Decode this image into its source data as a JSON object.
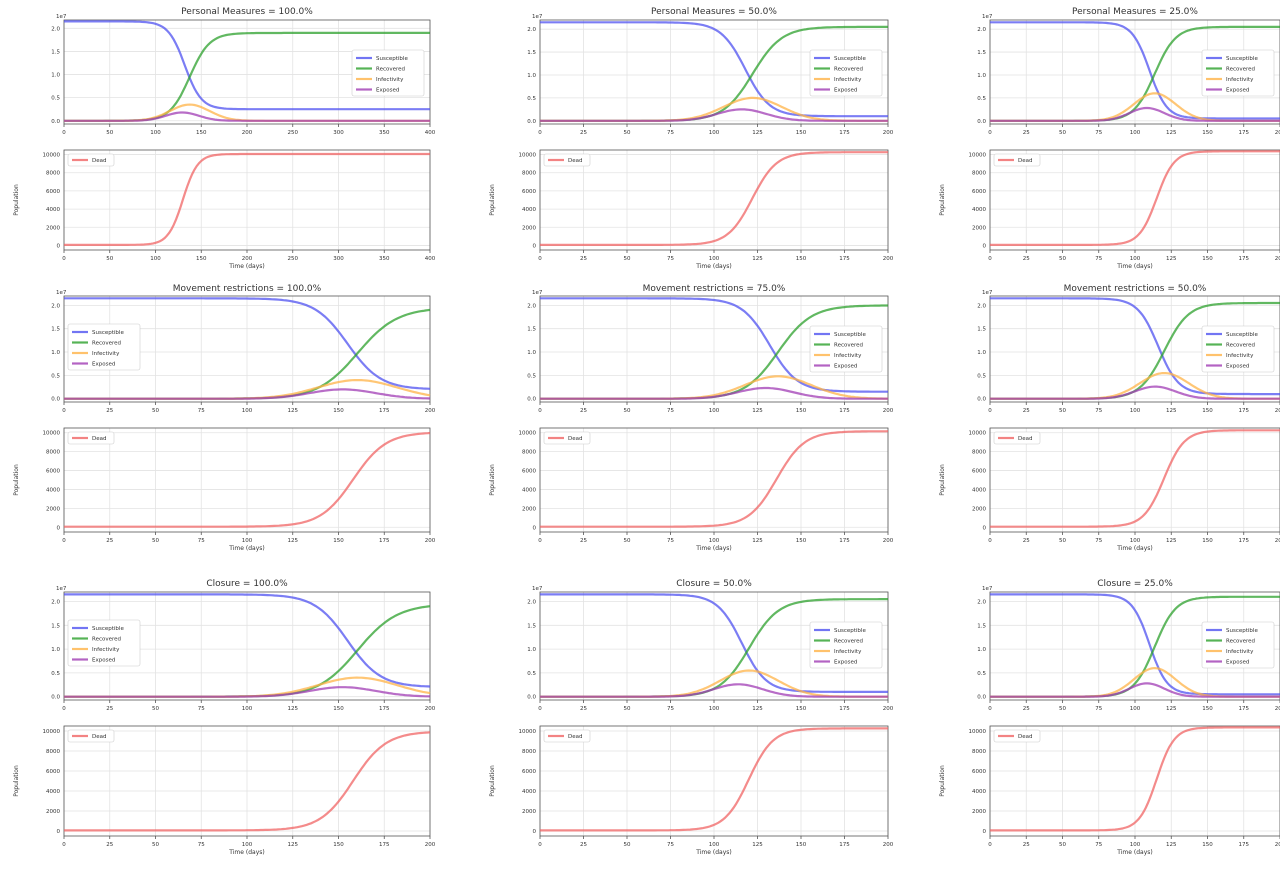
{
  "legend_labels": {
    "s": "Susceptible",
    "r": "Recovered",
    "i": "Infectivity",
    "e": "Exposed",
    "d": "Dead"
  },
  "colors": {
    "s": "#4f52f0",
    "r": "#2ca02c",
    "i": "#ffb347",
    "e": "#a03cb4",
    "d": "#f06464"
  },
  "common": {
    "ylabel_bottom": "Population",
    "xlabel": "Time (days)",
    "offset_top": "1e7",
    "top_yticks": [
      0.0,
      0.5,
      1.0,
      1.5,
      2.0
    ],
    "top_ytick_labels": [
      "0.0",
      "0.5",
      "1.0",
      "1.5",
      "2.0"
    ],
    "bottom_yticks": [
      0,
      2000,
      4000,
      6000,
      8000,
      10000
    ],
    "bottom_ytick_labels": [
      "0",
      "2000",
      "4000",
      "6000",
      "8000",
      "10000"
    ]
  },
  "chart_data": [
    {
      "type": "line",
      "title": "Personal Measures = 100.0%",
      "xmax": 400,
      "xticks": [
        0,
        50,
        100,
        150,
        200,
        250,
        300,
        350,
        400
      ],
      "xtick_labels": [
        "0",
        "50",
        "100",
        "150",
        "200",
        "250",
        "300",
        "350",
        "400"
      ],
      "top": {
        "ylim": [
          -0.07,
          2.18
        ],
        "s_start": 2.15,
        "s_end": 0.25,
        "r_end": 1.9,
        "i_peak": 0.35,
        "e_peak": 0.18,
        "mid": 132,
        "width": 9
      },
      "bottom": {
        "ylim": [
          -500,
          10500
        ],
        "d_end": 10000,
        "mid": 130,
        "width": 8
      },
      "legend_pos_top": "right",
      "legend_pos_bottom": "top-left"
    },
    {
      "type": "line",
      "title": "Personal Measures = 50.0%",
      "xmax": 200,
      "xticks": [
        0,
        25,
        50,
        75,
        100,
        125,
        150,
        175,
        200
      ],
      "xtick_labels": [
        "0",
        "25",
        "50",
        "75",
        "100",
        "125",
        "150",
        "175",
        "200"
      ],
      "top": {
        "ylim": [
          -0.07,
          2.2
        ],
        "s_start": 2.15,
        "s_end": 0.1,
        "r_end": 2.05,
        "i_peak": 0.5,
        "e_peak": 0.25,
        "mid": 118,
        "width": 7
      },
      "bottom": {
        "ylim": [
          -500,
          10500
        ],
        "d_end": 10200,
        "mid": 122,
        "width": 7
      },
      "legend_pos_top": "right",
      "legend_pos_bottom": "top-left"
    },
    {
      "type": "line",
      "title": "Personal Measures = 25.0%",
      "xmax": 200,
      "xticks": [
        0,
        25,
        50,
        75,
        100,
        125,
        150,
        175,
        200
      ],
      "xtick_labels": [
        "0",
        "25",
        "50",
        "75",
        "100",
        "125",
        "150",
        "175",
        "200"
      ],
      "top": {
        "ylim": [
          -0.07,
          2.2
        ],
        "s_start": 2.15,
        "s_end": 0.05,
        "r_end": 2.05,
        "i_peak": 0.6,
        "e_peak": 0.28,
        "mid": 110,
        "width": 6
      },
      "bottom": {
        "ylim": [
          -500,
          10500
        ],
        "d_end": 10300,
        "mid": 115,
        "width": 6
      },
      "legend_pos_top": "right",
      "legend_pos_bottom": "top-left"
    },
    {
      "type": "line",
      "title": "Movement restrictions = 100.0%",
      "xmax": 200,
      "xticks": [
        0,
        25,
        50,
        75,
        100,
        125,
        150,
        175,
        200
      ],
      "xtick_labels": [
        "0",
        "25",
        "50",
        "75",
        "100",
        "125",
        "150",
        "175",
        "200"
      ],
      "top": {
        "ylim": [
          -0.07,
          2.2
        ],
        "s_start": 2.15,
        "s_end": 0.2,
        "r_end": 1.95,
        "i_peak": 0.4,
        "e_peak": 0.2,
        "mid": 155,
        "width": 9
      },
      "bottom": {
        "ylim": [
          -500,
          10500
        ],
        "d_end": 10000,
        "mid": 158,
        "width": 9
      },
      "legend_pos_top": "left",
      "legend_pos_bottom": "top-left"
    },
    {
      "type": "line",
      "title": "Movement restrictions = 75.0%",
      "xmax": 200,
      "xticks": [
        0,
        25,
        50,
        75,
        100,
        125,
        150,
        175,
        200
      ],
      "xtick_labels": [
        "0",
        "25",
        "50",
        "75",
        "100",
        "125",
        "150",
        "175",
        "200"
      ],
      "top": {
        "ylim": [
          -0.07,
          2.2
        ],
        "s_start": 2.15,
        "s_end": 0.15,
        "r_end": 2.0,
        "i_peak": 0.48,
        "e_peak": 0.23,
        "mid": 132,
        "width": 8
      },
      "bottom": {
        "ylim": [
          -500,
          10500
        ],
        "d_end": 10100,
        "mid": 136,
        "width": 8
      },
      "legend_pos_top": "right",
      "legend_pos_bottom": "top-left"
    },
    {
      "type": "line",
      "title": "Movement restrictions = 50.0%",
      "xmax": 200,
      "xticks": [
        0,
        25,
        50,
        75,
        100,
        125,
        150,
        175,
        200
      ],
      "xtick_labels": [
        "0",
        "25",
        "50",
        "75",
        "100",
        "125",
        "150",
        "175",
        "200"
      ],
      "top": {
        "ylim": [
          -0.07,
          2.2
        ],
        "s_start": 2.15,
        "s_end": 0.1,
        "r_end": 2.05,
        "i_peak": 0.55,
        "e_peak": 0.26,
        "mid": 116,
        "width": 7
      },
      "bottom": {
        "ylim": [
          -500,
          10500
        ],
        "d_end": 10200,
        "mid": 120,
        "width": 7
      },
      "legend_pos_top": "right",
      "legend_pos_bottom": "top-left"
    },
    {
      "type": "line",
      "title": "Closure = 100.0%",
      "xmax": 200,
      "xticks": [
        0,
        25,
        50,
        75,
        100,
        125,
        150,
        175,
        200
      ],
      "xtick_labels": [
        "0",
        "25",
        "50",
        "75",
        "100",
        "125",
        "150",
        "175",
        "200"
      ],
      "top": {
        "ylim": [
          -0.07,
          2.2
        ],
        "s_start": 2.15,
        "s_end": 0.2,
        "r_end": 1.95,
        "i_peak": 0.4,
        "e_peak": 0.2,
        "mid": 155,
        "width": 9
      },
      "bottom": {
        "ylim": [
          -500,
          10500
        ],
        "d_end": 9900,
        "mid": 158,
        "width": 9
      },
      "legend_pos_top": "left",
      "legend_pos_bottom": "top-left"
    },
    {
      "type": "line",
      "title": "Closure = 50.0%",
      "xmax": 200,
      "xticks": [
        0,
        25,
        50,
        75,
        100,
        125,
        150,
        175,
        200
      ],
      "xtick_labels": [
        "0",
        "25",
        "50",
        "75",
        "100",
        "125",
        "150",
        "175",
        "200"
      ],
      "top": {
        "ylim": [
          -0.07,
          2.2
        ],
        "s_start": 2.15,
        "s_end": 0.1,
        "r_end": 2.05,
        "i_peak": 0.55,
        "e_peak": 0.26,
        "mid": 116,
        "width": 7
      },
      "bottom": {
        "ylim": [
          -500,
          10500
        ],
        "d_end": 10200,
        "mid": 120,
        "width": 7
      },
      "legend_pos_top": "right",
      "legend_pos_bottom": "top-left"
    },
    {
      "type": "line",
      "title": "Closure = 25.0%",
      "xmax": 200,
      "xticks": [
        0,
        25,
        50,
        75,
        100,
        125,
        150,
        175,
        200
      ],
      "xtick_labels": [
        "0",
        "25",
        "50",
        "75",
        "100",
        "125",
        "150",
        "175",
        "200"
      ],
      "top": {
        "ylim": [
          -0.07,
          2.2
        ],
        "s_start": 2.15,
        "s_end": 0.05,
        "r_end": 2.1,
        "i_peak": 0.6,
        "e_peak": 0.28,
        "mid": 110,
        "width": 6
      },
      "bottom": {
        "ylim": [
          -500,
          10500
        ],
        "d_end": 10300,
        "mid": 115,
        "width": 6
      },
      "legend_pos_top": "right",
      "legend_pos_bottom": "top-left"
    }
  ]
}
